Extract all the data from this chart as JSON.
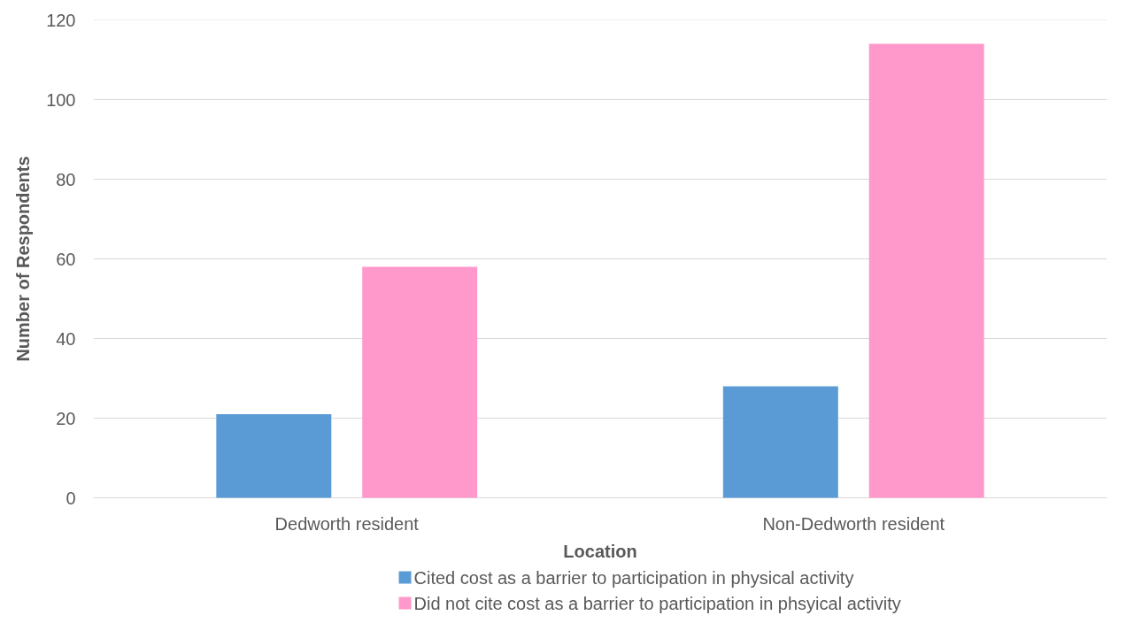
{
  "chart_data": {
    "type": "bar",
    "categories": [
      "Dedworth resident",
      "Non-Dedworth resident"
    ],
    "series": [
      {
        "name": "Cited cost as a barrier to participation in physical activity",
        "color": "#5b9bd5",
        "values": [
          21,
          28
        ]
      },
      {
        "name": "Did not cite cost as a barrier to participation in phsyical activity",
        "color": "#ff99cc",
        "values": [
          58,
          114
        ]
      }
    ],
    "xlabel": "Location",
    "ylabel": "Number of Respondents",
    "ylim": [
      0,
      120
    ],
    "yticks": [
      0,
      20,
      40,
      60,
      80,
      100,
      120
    ],
    "grid": "y",
    "legend": "bottom"
  }
}
